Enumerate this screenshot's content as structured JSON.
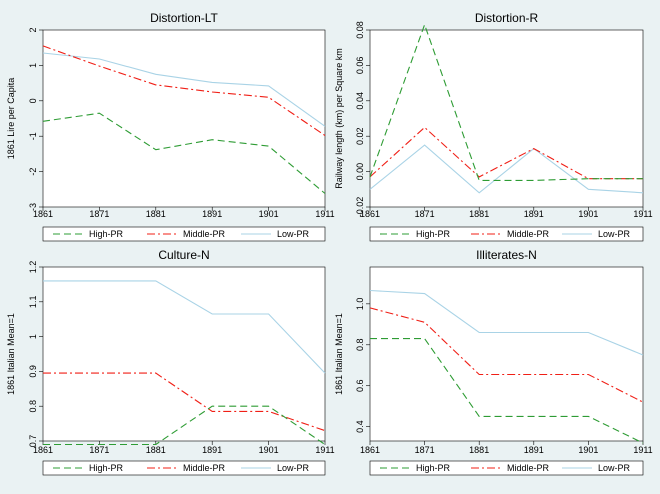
{
  "chart_data": [
    {
      "type": "line",
      "title": "Distortion-LT",
      "xlabel": "",
      "ylabel": "1861 Lire per Capita",
      "x": [
        1861,
        1871,
        1881,
        1891,
        1901,
        1911
      ],
      "xlim": [
        1861,
        1911
      ],
      "ylim": [
        -3,
        2
      ],
      "yticks": [
        2,
        1,
        0,
        -1,
        -2,
        -3
      ],
      "ytick_labels": [
        "2",
        "1",
        "0",
        "-1",
        "-2",
        "-3"
      ],
      "series": [
        {
          "name": "High-PR",
          "values": [
            -0.58,
            -0.35,
            -1.38,
            -1.1,
            -1.28,
            -2.62
          ]
        },
        {
          "name": "Middle-PR",
          "values": [
            1.55,
            0.98,
            0.45,
            0.25,
            0.1,
            -0.98
          ]
        },
        {
          "name": "Low-PR",
          "values": [
            1.35,
            1.18,
            0.75,
            0.52,
            0.42,
            -0.72
          ]
        }
      ]
    },
    {
      "type": "line",
      "title": "Distortion-R",
      "xlabel": "",
      "ylabel": "Railway length (km) per Square km",
      "x": [
        1861,
        1871,
        1881,
        1891,
        1901,
        1911
      ],
      "xlim": [
        1861,
        1911
      ],
      "ylim": [
        -0.02,
        0.08
      ],
      "yticks": [
        0.08,
        0.06,
        0.04,
        0.02,
        0,
        -0.02
      ],
      "ytick_labels": [
        "0.08",
        "0.06",
        "0.04",
        "0.02",
        "0.00",
        "-0.02"
      ],
      "series": [
        {
          "name": "High-PR",
          "values": [
            -0.003,
            0.083,
            -0.005,
            -0.005,
            -0.004,
            -0.004
          ]
        },
        {
          "name": "Middle-PR",
          "values": [
            -0.003,
            0.025,
            -0.003,
            0.013,
            -0.004,
            -0.004
          ]
        },
        {
          "name": "Low-PR",
          "values": [
            -0.01,
            0.015,
            -0.012,
            0.013,
            -0.01,
            -0.012
          ]
        }
      ]
    },
    {
      "type": "line",
      "title": "Culture-N",
      "xlabel": "",
      "ylabel": "1861 Italian Mean=1",
      "x": [
        1861,
        1871,
        1881,
        1891,
        1901,
        1911
      ],
      "xlim": [
        1861,
        1911
      ],
      "ylim": [
        0.7,
        1.2
      ],
      "yticks": [
        1.2,
        1.1,
        1.0,
        0.9,
        0.8,
        0.7
      ],
      "ytick_labels": [
        "1.2",
        "1.1",
        "1",
        "0.9",
        "0.8",
        "0.7"
      ],
      "series": [
        {
          "name": "High-PR",
          "values": [
            0.69,
            0.69,
            0.69,
            0.8,
            0.8,
            0.69
          ]
        },
        {
          "name": "Middle-PR",
          "values": [
            0.895,
            0.895,
            0.895,
            0.785,
            0.785,
            0.73
          ]
        },
        {
          "name": "Low-PR",
          "values": [
            1.16,
            1.16,
            1.16,
            1.065,
            1.065,
            0.895
          ]
        }
      ]
    },
    {
      "type": "line",
      "title": "Illiterates-N",
      "xlabel": "",
      "ylabel": "1861 Italian Mean=1",
      "x": [
        1861,
        1871,
        1881,
        1891,
        1901,
        1911
      ],
      "xlim": [
        1861,
        1911
      ],
      "ylim": [
        0.33,
        1.18
      ],
      "yticks": [
        1.0,
        0.8,
        0.6,
        0.4
      ],
      "ytick_labels": [
        "1.0",
        "0.8",
        "0.6",
        "0.4"
      ],
      "series": [
        {
          "name": "High-PR",
          "values": [
            0.83,
            0.83,
            0.45,
            0.45,
            0.45,
            0.32
          ]
        },
        {
          "name": "Middle-PR",
          "values": [
            0.98,
            0.91,
            0.655,
            0.655,
            0.655,
            0.52
          ]
        },
        {
          "name": "Low-PR",
          "values": [
            1.065,
            1.05,
            0.86,
            0.86,
            0.86,
            0.75
          ]
        }
      ]
    }
  ],
  "style": {
    "series_colors": [
      "#2e9c34",
      "#f01f16",
      "#a9d3e6"
    ],
    "series_dash": [
      "dashed",
      "dash-dot",
      "solid"
    ],
    "background": "#eaf2f3",
    "plot_background": "#ffffff"
  }
}
